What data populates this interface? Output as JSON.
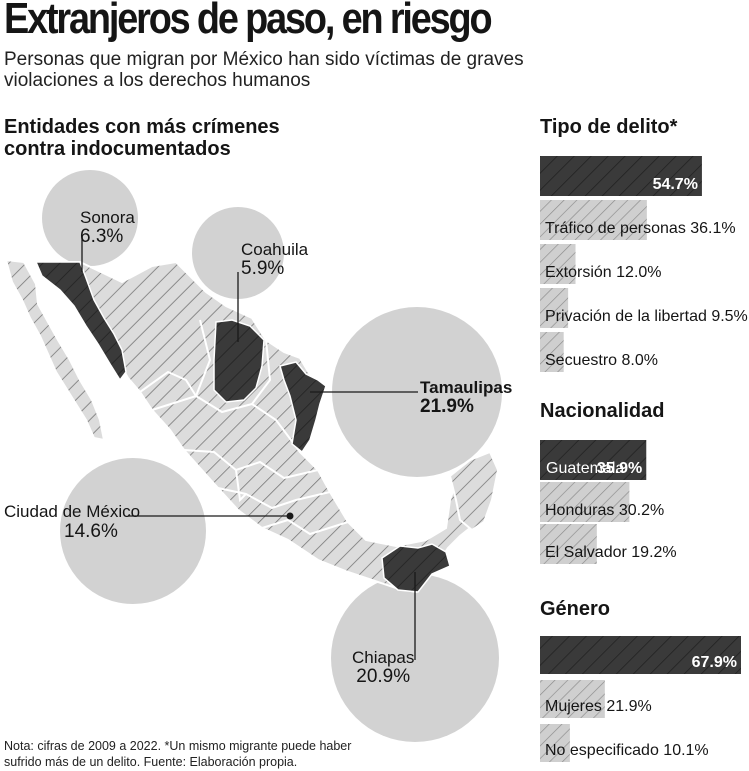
{
  "title": "Extranjeros de paso, en riesgo",
  "subtitle": "Personas que migran por México han sido víctimas de graves violaciones a los derechos humanos",
  "map": {
    "heading": "Entidades con más crímenes contra indocumentados",
    "states": [
      {
        "name": "Sonora",
        "value": "6.3%"
      },
      {
        "name": "Coahuila",
        "value": "5.9%"
      },
      {
        "name": "Tamaulipas",
        "value": "21.9%"
      },
      {
        "name": "Ciudad de México",
        "value": "14.6%"
      },
      {
        "name": "Chiapas",
        "value": "20.9%"
      }
    ]
  },
  "note": "Nota: cifras de 2009 a 2022. *Un mismo migrante puede haber sufrido más de un delito. Fuente: Elaboración propia.",
  "colors": {
    "dark": "#3a3a3a",
    "light": "#cfcfcf",
    "circle": "#d2d2d2"
  },
  "chart_data": [
    {
      "type": "bar",
      "title": "Tipo de delito*",
      "categories": [
        "",
        "Tráfico de personas",
        "Extorsión",
        "Privación de la libertad",
        "Secuestro"
      ],
      "values": [
        54.7,
        36.1,
        12.0,
        9.5,
        8.0
      ],
      "labels": [
        "54.7%",
        "36.1%",
        "12.0%",
        "9.5%",
        "8.0%"
      ]
    },
    {
      "type": "bar",
      "title": "Nacionalidad",
      "categories": [
        "Guatemala",
        "Honduras",
        "El Salvador"
      ],
      "values": [
        35.9,
        30.2,
        19.2
      ],
      "labels": [
        "35.9%",
        "30.2%",
        "19.2%"
      ]
    },
    {
      "type": "bar",
      "title": "Género",
      "categories": [
        "",
        "Mujeres",
        "No especificado"
      ],
      "values": [
        67.9,
        21.9,
        10.1
      ],
      "labels": [
        "67.9%",
        "21.9%",
        "10.1%"
      ]
    }
  ]
}
